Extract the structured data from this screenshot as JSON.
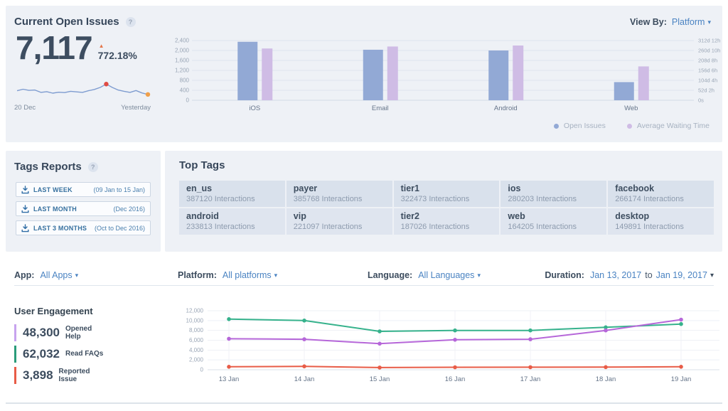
{
  "open_issues": {
    "title": "Current Open Issues",
    "help": "?",
    "view_by": {
      "label": "View By:",
      "value": "Platform",
      "caret": "▾"
    },
    "count": "7,117",
    "change_arrow": "▲",
    "change": "772.18%",
    "range_start": "20 Dec",
    "range_end": "Yesterday",
    "legend": [
      {
        "label": "Open Issues",
        "color": "#92a9d5"
      },
      {
        "label": "Average Waiting Time",
        "color": "#cfbce5"
      }
    ]
  },
  "tags_reports": {
    "title": "Tags Reports",
    "help": "?",
    "buttons": [
      {
        "label": "LAST WEEK",
        "range": "(09 Jan to 15 Jan)"
      },
      {
        "label": "LAST MONTH",
        "range": "(Dec 2016)"
      },
      {
        "label": "LAST 3 MONTHS",
        "range": "(Oct to Dec 2016)"
      }
    ]
  },
  "top_tags": {
    "title": "Top Tags",
    "tags": [
      {
        "name": "en_us",
        "count": "387120 Interactions"
      },
      {
        "name": "payer",
        "count": "385768 Interactions"
      },
      {
        "name": "tier1",
        "count": "322473 Interactions"
      },
      {
        "name": "ios",
        "count": "280203 Interactions"
      },
      {
        "name": "facebook",
        "count": "266174 Interactions"
      },
      {
        "name": "android",
        "count": "233813 Interactions"
      },
      {
        "name": "vip",
        "count": "221097 Interactions"
      },
      {
        "name": "tier2",
        "count": "187026 Interactions"
      },
      {
        "name": "web",
        "count": "164205 Interactions"
      },
      {
        "name": "desktop",
        "count": "149891 Interactions"
      }
    ]
  },
  "filters": {
    "app": {
      "label": "App:",
      "value": "All Apps",
      "caret": "▾"
    },
    "platform": {
      "label": "Platform:",
      "value": "All platforms",
      "caret": "▾"
    },
    "language": {
      "label": "Language:",
      "value": "All Languages",
      "caret": "▾"
    },
    "duration": {
      "label": "Duration:",
      "from": "Jan 13, 2017",
      "joiner": "to",
      "to": "Jan 19, 2017",
      "caret": "▾"
    }
  },
  "engagement": {
    "title": "User Engagement",
    "metrics": [
      {
        "value": "48,300",
        "label": "Opened\nHelp",
        "color": "#c7a3ee"
      },
      {
        "value": "62,032",
        "label": "Read FAQs",
        "color": "#2b9c7a"
      },
      {
        "value": "3,898",
        "label": "Reported\nIssue",
        "color": "#e85c47"
      }
    ]
  },
  "chart_data": [
    {
      "id": "open-issues-sparkline",
      "type": "line",
      "title": "Current Open Issues trend",
      "x_start": "20 Dec",
      "x_end": "Yesterday",
      "values_relative": [
        40,
        48,
        42,
        44,
        31,
        35,
        27,
        32,
        30,
        37,
        34,
        31,
        40,
        47,
        58,
        76,
        58,
        44,
        37,
        31,
        41,
        28,
        20
      ],
      "line_color": "#7e9cd0",
      "peak_color": "#df4b43",
      "end_color": "#f0a04b"
    },
    {
      "id": "open-issues-by-platform",
      "type": "bar",
      "categories": [
        "iOS",
        "Email",
        "Android",
        "Web"
      ],
      "series": [
        {
          "name": "Open Issues",
          "axis": "left",
          "color": "#92a9d5",
          "values": [
            2350,
            2030,
            2000,
            730
          ]
        },
        {
          "name": "Average Waiting Time",
          "axis": "right",
          "color": "#cfbce5",
          "values": [
            2080,
            2160,
            2200,
            1360
          ],
          "scale": "left-axis-equivalent"
        }
      ],
      "left_axis": {
        "ticks": [
          "2,400",
          "2,000",
          "1,600",
          "1,200",
          "800",
          "400",
          "0"
        ],
        "min": 0,
        "max": 2400
      },
      "right_axis": {
        "ticks": [
          "312d 12h",
          "260d 10h",
          "208d 8h",
          "156d 6h",
          "104d 4h",
          "52d 2h",
          "0s"
        ]
      },
      "grid": true,
      "legend_position": "bottom-right"
    },
    {
      "id": "user-engagement",
      "type": "line",
      "x": [
        "13 Jan",
        "14 Jan",
        "15 Jan",
        "16 Jan",
        "17 Jan",
        "18 Jan",
        "19 Jan"
      ],
      "series": [
        {
          "name": "Read FAQs",
          "color": "#36b28c",
          "values": [
            10300,
            10000,
            7800,
            8000,
            8000,
            8632,
            9300
          ]
        },
        {
          "name": "Opened Help",
          "color": "#b667d9",
          "values": [
            6300,
            6200,
            5300,
            6100,
            6200,
            8000,
            10200
          ]
        },
        {
          "name": "Reported Issue",
          "color": "#e85c47",
          "values": [
            600,
            700,
            450,
            500,
            520,
            528,
            600
          ]
        }
      ],
      "y_ticks": [
        "12,000",
        "10,000",
        "8,000",
        "6,000",
        "4,000",
        "2,000",
        "0"
      ],
      "ylim": [
        0,
        12000
      ],
      "grid": true
    }
  ]
}
